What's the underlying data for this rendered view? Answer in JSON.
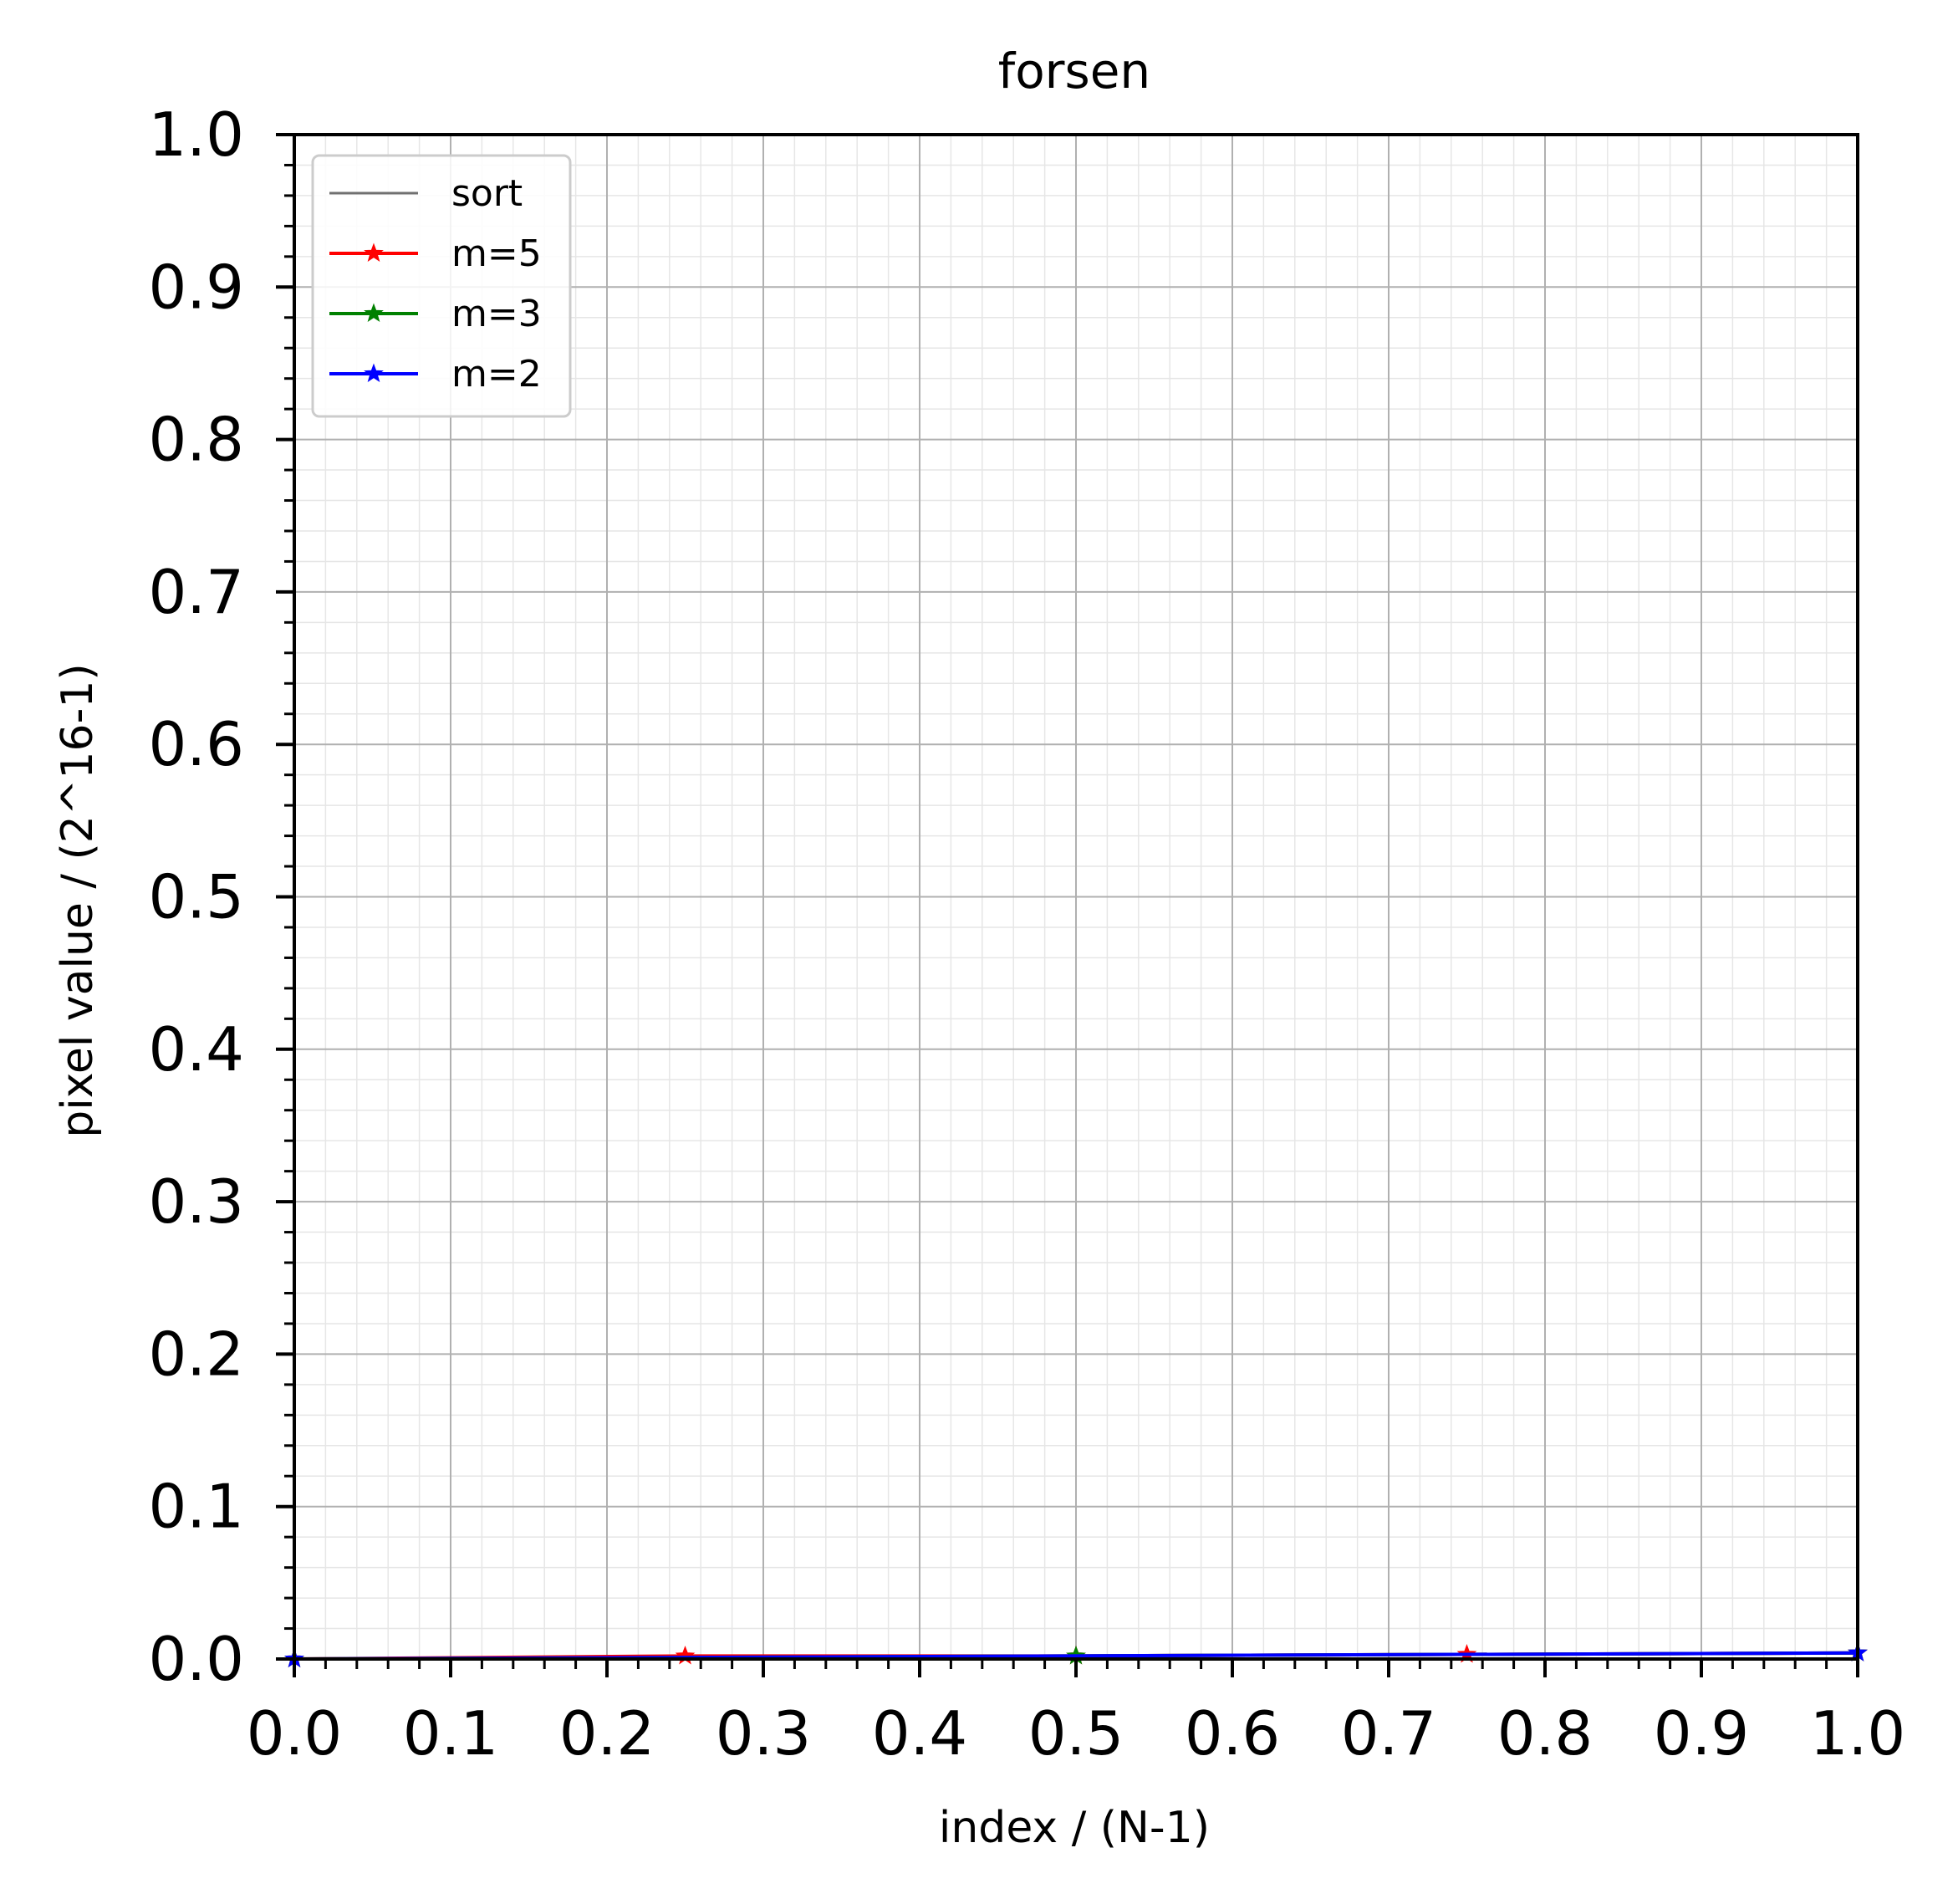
{
  "chart_data": {
    "type": "line",
    "title": "forsen",
    "xlabel": "index / (N-1)",
    "ylabel": "pixel value / (2^16-1)",
    "xlim": [
      0.0,
      1.0
    ],
    "ylim": [
      0.0,
      1.0
    ],
    "x_ticks": [
      "0.0",
      "0.1",
      "0.2",
      "0.3",
      "0.4",
      "0.5",
      "0.6",
      "0.7",
      "0.8",
      "0.9",
      "1.0"
    ],
    "y_ticks": [
      "0.0",
      "0.1",
      "0.2",
      "0.3",
      "0.4",
      "0.5",
      "0.6",
      "0.7",
      "0.8",
      "0.9",
      "1.0"
    ],
    "grid": {
      "major": true,
      "minor": true
    },
    "legend_position": "top-left",
    "series": [
      {
        "name": "sort",
        "color": "#707070",
        "marker": "none",
        "x": [
          0.0,
          0.25,
          0.5,
          0.75,
          1.0
        ],
        "y": [
          0.0,
          0.001,
          0.002,
          0.003,
          0.004
        ]
      },
      {
        "name": "m=5",
        "color": "#ff0000",
        "marker": "star",
        "x": [
          0.0,
          0.25,
          0.5,
          0.75,
          1.0
        ],
        "y": [
          0.0,
          0.002,
          0.002,
          0.003,
          0.004
        ]
      },
      {
        "name": "m=3",
        "color": "#008000",
        "marker": "star",
        "x": [
          0.0,
          0.5,
          1.0
        ],
        "y": [
          0.0,
          0.002,
          0.004
        ]
      },
      {
        "name": "m=2",
        "color": "#0000ff",
        "marker": "star",
        "x": [
          0.0,
          1.0
        ],
        "y": [
          0.0,
          0.004
        ]
      }
    ]
  }
}
